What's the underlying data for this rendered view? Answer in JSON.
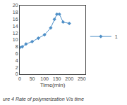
{
  "chart_data": {
    "type": "line",
    "x": [
      0,
      10,
      25,
      50,
      75,
      100,
      125,
      140,
      150,
      160,
      175,
      200
    ],
    "series": [
      {
        "name": "1",
        "color": "#4e8fc7",
        "marker": "diamond",
        "values": [
          7.8,
          8.0,
          8.8,
          9.5,
          10.5,
          11.5,
          13.5,
          16.0,
          17.5,
          17.5,
          15.2,
          14.8
        ]
      }
    ],
    "x_label": "Time(min)",
    "xlim": [
      0,
      265
    ],
    "xticks": [
      0,
      50,
      100,
      150,
      200,
      250
    ],
    "ylim": [
      0,
      20
    ],
    "yticks": [
      0,
      2,
      4,
      6,
      8,
      10,
      12,
      14,
      16,
      18,
      20
    ],
    "grid": false,
    "legend": "right",
    "annotations": [
      "ure 4 Rate of polymerization V/s time"
    ]
  }
}
